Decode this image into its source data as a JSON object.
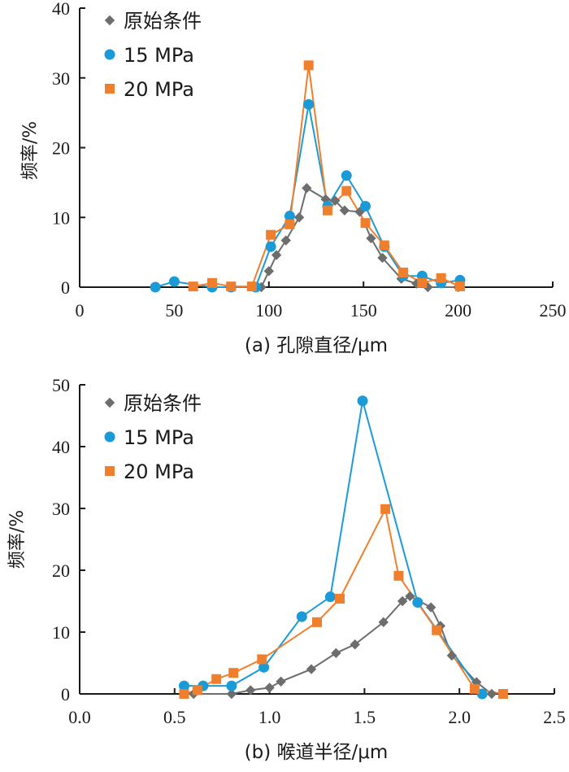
{
  "chart_data": [
    {
      "type": "line",
      "caption": "(a) 孔隙直径/μm",
      "ylabel": "频率/%",
      "xlim": [
        0,
        250
      ],
      "ylim": [
        0,
        40
      ],
      "xticks": [
        "0",
        "50",
        "100",
        "150",
        "200",
        "250"
      ],
      "yticks": [
        "0",
        "10",
        "20",
        "30",
        "40"
      ],
      "legend_position": "top-left",
      "series": [
        {
          "name": "原始条件",
          "color": "#6d6d6d",
          "marker": "diamond",
          "points": [
            [
              92,
              0
            ],
            [
              96,
              0
            ],
            [
              100,
              2.3
            ],
            [
              104,
              4.6
            ],
            [
              109,
              6.7
            ],
            [
              116,
              10
            ],
            [
              120,
              14.2
            ],
            [
              130,
              12.6
            ],
            [
              135,
              12.4
            ],
            [
              140,
              11
            ],
            [
              148,
              10.8
            ],
            [
              154,
              7
            ],
            [
              160,
              4.2
            ],
            [
              170,
              1.2
            ],
            [
              178,
              0.5
            ],
            [
              184,
              0
            ],
            [
              200,
              0
            ]
          ]
        },
        {
          "name": "15 MPa",
          "color": "#1a9bd7",
          "marker": "circle",
          "points": [
            [
              40,
              0
            ],
            [
              50,
              0.8
            ],
            [
              70,
              0
            ],
            [
              80,
              0
            ],
            [
              93,
              0
            ],
            [
              101,
              5.8
            ],
            [
              111,
              10.2
            ],
            [
              121,
              26.2
            ],
            [
              131,
              11.6
            ],
            [
              141,
              16
            ],
            [
              151,
              11.6
            ],
            [
              161,
              5.8
            ],
            [
              171,
              1.6
            ],
            [
              181,
              1.6
            ],
            [
              191,
              0.6
            ],
            [
              201,
              1
            ]
          ]
        },
        {
          "name": "20 MPa",
          "color": "#f07f2d",
          "marker": "square",
          "points": [
            [
              60,
              0.1
            ],
            [
              70,
              0.6
            ],
            [
              80,
              0.1
            ],
            [
              91,
              0.1
            ],
            [
              101,
              7.5
            ],
            [
              111,
              9
            ],
            [
              121,
              31.8
            ],
            [
              131,
              11
            ],
            [
              141,
              13.8
            ],
            [
              151,
              9.2
            ],
            [
              161,
              6
            ],
            [
              171,
              2.1
            ],
            [
              181,
              0.6
            ],
            [
              191,
              1.3
            ],
            [
              201,
              0.1
            ]
          ]
        }
      ]
    },
    {
      "type": "line",
      "caption": "(b) 喉道半径/μm",
      "ylabel": "频率/%",
      "xlim": [
        0,
        2.5
      ],
      "ylim": [
        0,
        50
      ],
      "xticks": [
        "0.0",
        "0.5",
        "1.0",
        "1.5",
        "2.0",
        "2.5"
      ],
      "yticks": [
        "0",
        "10",
        "20",
        "30",
        "40",
        "50"
      ],
      "legend_position": "top-left",
      "series": [
        {
          "name": "原始条件",
          "color": "#6d6d6d",
          "marker": "diamond",
          "points": [
            [
              0.6,
              0
            ],
            [
              0.8,
              0
            ],
            [
              0.9,
              0.6
            ],
            [
              1.0,
              1
            ],
            [
              1.06,
              2
            ],
            [
              1.22,
              4
            ],
            [
              1.35,
              6.6
            ],
            [
              1.45,
              8
            ],
            [
              1.6,
              11.6
            ],
            [
              1.7,
              15
            ],
            [
              1.74,
              15.8
            ],
            [
              1.85,
              14
            ],
            [
              1.9,
              11
            ],
            [
              1.96,
              6.2
            ],
            [
              2.09,
              1.9
            ],
            [
              2.17,
              0
            ]
          ]
        },
        {
          "name": "15 MPa",
          "color": "#1a9bd7",
          "marker": "circle",
          "points": [
            [
              0.55,
              1.3
            ],
            [
              0.65,
              1.3
            ],
            [
              0.8,
              1.3
            ],
            [
              0.97,
              4.3
            ],
            [
              1.17,
              12.5
            ],
            [
              1.32,
              15.7
            ],
            [
              1.49,
              47.4
            ],
            [
              1.78,
              14.8
            ],
            [
              2.12,
              0
            ]
          ]
        },
        {
          "name": "20 MPa",
          "color": "#f07f2d",
          "marker": "square",
          "points": [
            [
              0.55,
              0
            ],
            [
              0.62,
              0.6
            ],
            [
              0.72,
              2.4
            ],
            [
              0.81,
              3.4
            ],
            [
              0.96,
              5.6
            ],
            [
              1.25,
              11.6
            ],
            [
              1.37,
              15.4
            ],
            [
              1.61,
              29.9
            ],
            [
              1.68,
              19.1
            ],
            [
              1.88,
              10.3
            ],
            [
              2.08,
              0.8
            ],
            [
              2.23,
              0
            ]
          ]
        }
      ]
    }
  ]
}
